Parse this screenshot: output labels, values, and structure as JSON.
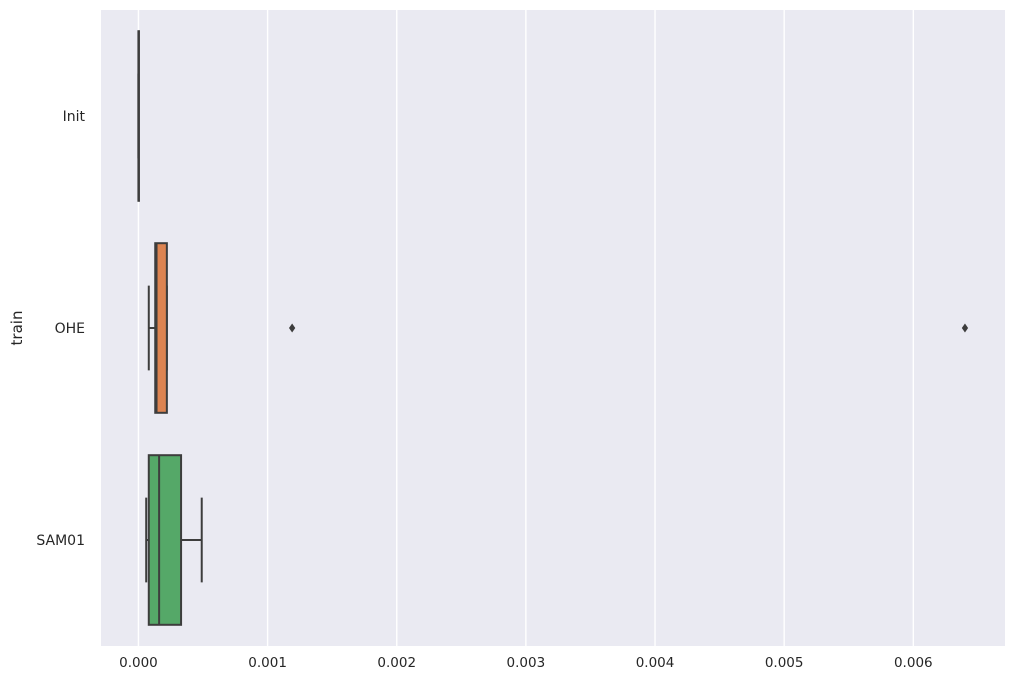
{
  "chart_data": {
    "type": "boxplot",
    "orientation": "horizontal",
    "title": "",
    "xlabel": "",
    "ylabel": "train",
    "xlim": [
      -0.00029,
      0.00671
    ],
    "x_ticks": [
      "0.000",
      "0.001",
      "0.002",
      "0.003",
      "0.004",
      "0.005",
      "0.006"
    ],
    "x_tick_values": [
      0,
      0.001,
      0.002,
      0.003,
      0.004,
      0.005,
      0.006
    ],
    "grid": true,
    "categories": [
      "Init",
      "OHE",
      "SAM01"
    ],
    "series": [
      {
        "category": "Init",
        "whisker_low": 0.0,
        "q1": 0.0,
        "median": 0.0,
        "q3": 0.0,
        "whisker_high": 0.0,
        "outliers": [],
        "color": "#4c72b0"
      },
      {
        "category": "OHE",
        "whisker_low": 8e-05,
        "q1": 0.00013,
        "median": 0.00014,
        "q3": 0.00022,
        "whisker_high": 0.00022,
        "outliers": [
          0.00119,
          0.0064
        ],
        "color": "#dd8452"
      },
      {
        "category": "SAM01",
        "whisker_low": 6e-05,
        "q1": 8e-05,
        "median": 0.00016,
        "q3": 0.00033,
        "whisker_high": 0.00049,
        "outliers": [],
        "color": "#55a868"
      }
    ],
    "colors": {
      "background": "#eaeaf2",
      "grid": "#ffffff",
      "line": "#3d3d3d"
    }
  }
}
